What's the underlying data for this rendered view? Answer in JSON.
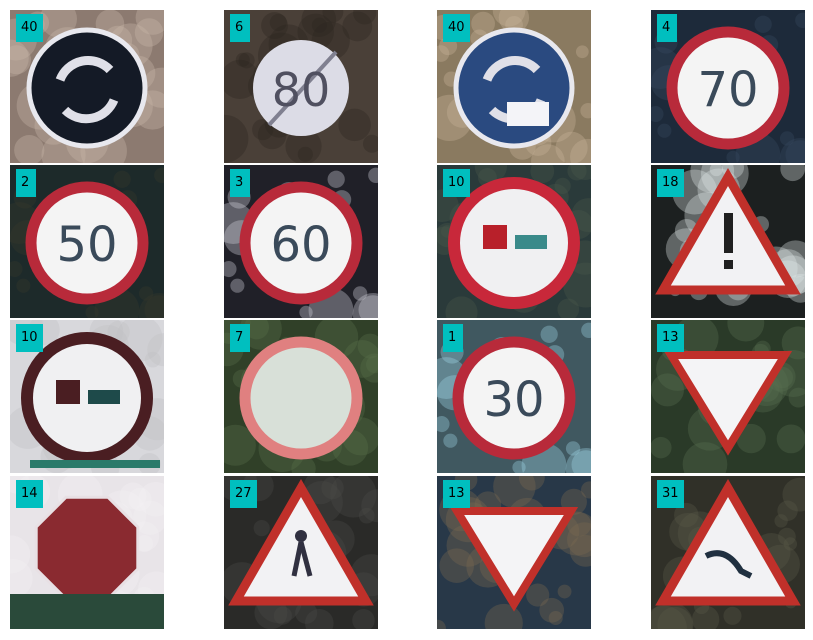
{
  "tiles": [
    {
      "label": "40",
      "sign": "roundabout",
      "bg": "#8c7a70",
      "accent": "#1a2030",
      "noise": "#c9b7a8"
    },
    {
      "label": "6",
      "sign": "end-speed-80",
      "bg": "#4a4038",
      "accent": "#e8e6ea",
      "noise": "#2b251f",
      "text": "80"
    },
    {
      "label": "40",
      "sign": "roundabout-light",
      "bg": "#8a7a60",
      "accent": "#2c4a7a",
      "noise": "#c8b49a"
    },
    {
      "label": "4",
      "sign": "speed",
      "bg": "#1d2a3a",
      "accent": "#ffffff",
      "noise": "#3a4a60",
      "text": "70"
    },
    {
      "label": "2",
      "sign": "speed",
      "bg": "#1d2a2a",
      "accent": "#ffffff",
      "noise": "#3a3a2a",
      "text": "50"
    },
    {
      "label": "3",
      "sign": "speed",
      "bg": "#202028",
      "accent": "#ffffff",
      "noise": "#d8d8e0",
      "text": "60"
    },
    {
      "label": "10",
      "sign": "no-overtake-trucks-red",
      "bg": "#2a3a3a",
      "accent": "#ffffff",
      "noise": "#4a5a4a"
    },
    {
      "label": "18",
      "sign": "warning-exclamation",
      "bg": "#1c2020",
      "accent": "#ffffff",
      "noise": "#e0e8e8"
    },
    {
      "label": "10",
      "sign": "no-overtake-trucks",
      "bg": "#d8d8dc",
      "accent": "#efefef",
      "noise": "#c0c0c4"
    },
    {
      "label": "7",
      "sign": "speed-faded",
      "bg": "#304028",
      "accent": "#e8e8e0",
      "noise": "#58704a"
    },
    {
      "label": "1",
      "sign": "speed",
      "bg": "#405860",
      "accent": "#ffffff",
      "noise": "#a0d8e8",
      "text": "30"
    },
    {
      "label": "13",
      "sign": "yield",
      "bg": "#2a3a28",
      "accent": "#ffffff",
      "noise": "#587050"
    },
    {
      "label": "14",
      "sign": "stop",
      "bg": "#e8e4e8",
      "accent": "#8a2a30",
      "noise": "#f4f0f4"
    },
    {
      "label": "27",
      "sign": "warning-pedestrian",
      "bg": "#2a2a28",
      "accent": "#ffffff",
      "noise": "#4a4a48"
    },
    {
      "label": "13",
      "sign": "yield-noisy",
      "bg": "#283848",
      "accent": "#ffffff",
      "noise": "#7a6a50"
    },
    {
      "label": "31",
      "sign": "warning-animal",
      "bg": "#303028",
      "accent": "#ffffff",
      "noise": "#585848"
    }
  ]
}
